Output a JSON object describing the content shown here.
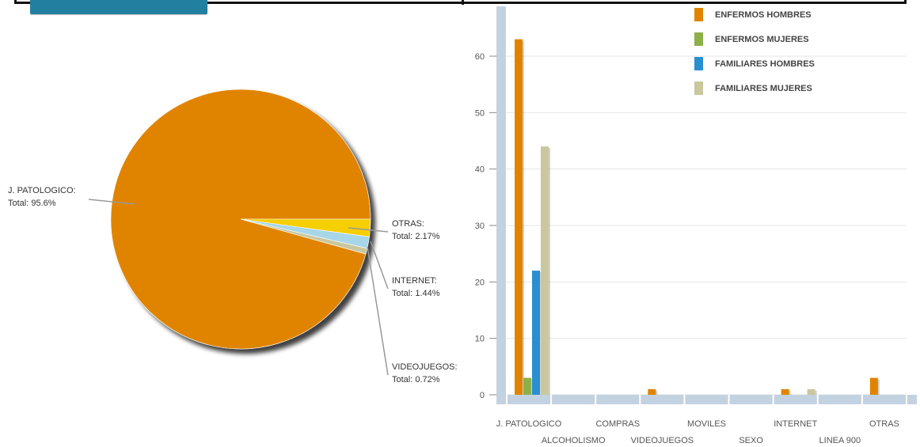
{
  "chart_data": [
    {
      "type": "pie",
      "slices": [
        {
          "label": "J. PATOLOGICO:",
          "value_text": "Total:  95.6%",
          "value": 95.6,
          "color": "#e08400"
        },
        {
          "label": "OTRAS:",
          "value_text": "Total:  2.17%",
          "value": 2.17,
          "color": "#f6cf00"
        },
        {
          "label": "INTERNET:",
          "value_text": "Total:  1.44%",
          "value": 1.44,
          "color": "#a7d6e8"
        },
        {
          "label": "VIDEOJUEGOS:",
          "value_text": "Total:  0.72%",
          "value": 0.72,
          "color": "#c9c79e"
        }
      ]
    },
    {
      "type": "bar",
      "ylim": [
        0,
        66
      ],
      "yticks": [
        0,
        10,
        20,
        30,
        40,
        50,
        60
      ],
      "grid": true,
      "legend_placement": "top-right",
      "categories": [
        "J. PATOLOGICO",
        "ALCOHOLISMO",
        "COMPRAS",
        "VIDEOJUEGOS",
        "MOVILES",
        "SEXO",
        "INTERNET",
        "LINEA 900",
        "OTRAS"
      ],
      "series": [
        {
          "name": "ENFERMOS HOMBRES",
          "color": "#e08400",
          "values": [
            63,
            0,
            0,
            1,
            0,
            0,
            1,
            0,
            3
          ]
        },
        {
          "name": "ENFERMOS MUJERES",
          "color": "#8db04a",
          "values": [
            3,
            0,
            0,
            0,
            0,
            0,
            0,
            0,
            0
          ]
        },
        {
          "name": "FAMILIARES HOMBRES",
          "color": "#2a8fd0",
          "values": [
            22,
            0,
            0,
            0,
            0,
            0,
            0,
            0,
            0
          ]
        },
        {
          "name": "FAMILIARES MUJERES",
          "color": "#c9c79e",
          "values": [
            44,
            0,
            0,
            0,
            0,
            0,
            1,
            0,
            0
          ]
        }
      ]
    }
  ],
  "toolbar": {
    "export_color": "#237f9f"
  }
}
